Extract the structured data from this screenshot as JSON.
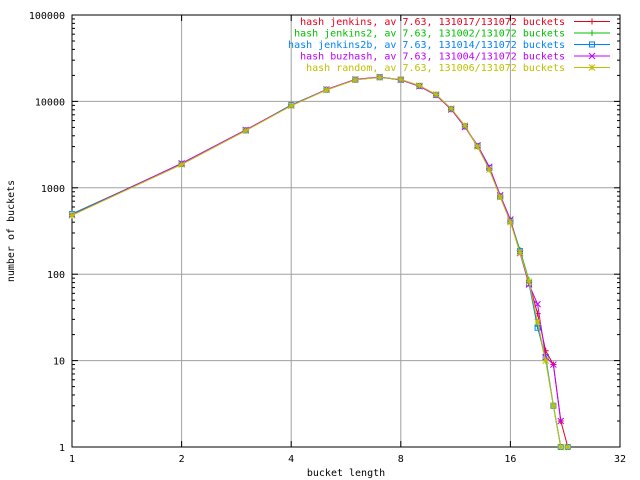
{
  "chart_data": {
    "type": "line",
    "title": "",
    "xlabel": "bucket length",
    "ylabel": "number of buckets",
    "xscale": "log2",
    "yscale": "log10",
    "xlim": [
      1,
      32
    ],
    "ylim": [
      1,
      100000
    ],
    "grid": true,
    "legend_position": "top-right",
    "x_ticks": [
      {
        "v": 1,
        "label": "1"
      },
      {
        "v": 2,
        "label": "2"
      },
      {
        "v": 4,
        "label": "4"
      },
      {
        "v": 8,
        "label": "8"
      },
      {
        "v": 16,
        "label": "16"
      },
      {
        "v": 32,
        "label": "32"
      }
    ],
    "y_ticks": [
      {
        "v": 1,
        "label": "1"
      },
      {
        "v": 10,
        "label": "10"
      },
      {
        "v": 100,
        "label": "100"
      },
      {
        "v": 1000,
        "label": "1000"
      },
      {
        "v": 10000,
        "label": "10000"
      },
      {
        "v": 100000,
        "label": "100000"
      }
    ],
    "series": [
      {
        "name": "hash jenkins, av 7.63, 131017/131072 buckets",
        "color": "#e8001c",
        "marker": "plus",
        "x": [
          1,
          2,
          3,
          4,
          5,
          6,
          7,
          8,
          9,
          10,
          11,
          12,
          13,
          14,
          15,
          16,
          17,
          18,
          19,
          20,
          21,
          22,
          23
        ],
        "y": [
          490,
          1900,
          4650,
          9000,
          13700,
          17900,
          19100,
          17800,
          15000,
          11800,
          8100,
          5100,
          3000,
          1650,
          800,
          420,
          180,
          80,
          35,
          13,
          9,
          2,
          1
        ]
      },
      {
        "name": "hash jenkins2, av 7.63, 131002/131072 buckets",
        "color": "#00c000",
        "marker": "plus",
        "x": [
          1,
          2,
          3,
          4,
          5,
          6,
          7,
          8,
          9,
          10,
          11,
          12,
          13,
          14,
          15,
          16,
          17,
          18,
          19,
          20,
          21,
          22,
          23
        ],
        "y": [
          500,
          1880,
          4600,
          9100,
          13600,
          17800,
          19000,
          17900,
          15200,
          12000,
          8200,
          5200,
          3000,
          1650,
          800,
          420,
          190,
          85,
          25,
          10,
          3,
          1,
          1
        ]
      },
      {
        "name": "hash jenkins2b, av 7.63, 131014/131072 buckets",
        "color": "#0080ff",
        "marker": "box",
        "x": [
          1,
          2,
          3,
          4,
          5,
          6,
          7,
          8,
          9,
          10,
          11,
          12,
          13,
          14,
          15,
          16,
          17,
          18,
          19,
          20,
          21,
          22,
          23
        ],
        "y": [
          495,
          1890,
          4620,
          9050,
          13650,
          17850,
          19050,
          17850,
          15100,
          11900,
          8150,
          5150,
          3050,
          1700,
          790,
          410,
          185,
          78,
          24,
          11,
          3,
          1,
          1
        ]
      },
      {
        "name": "hash buzhash, av 7.63, 131004/131072 buckets",
        "color": "#c000ff",
        "marker": "cross",
        "x": [
          1,
          2,
          3,
          4,
          5,
          6,
          7,
          8,
          9,
          10,
          11,
          12,
          13,
          14,
          15,
          16,
          17,
          18,
          19,
          20,
          21,
          22
        ],
        "y": [
          485,
          1920,
          4680,
          8950,
          13750,
          17950,
          19150,
          17750,
          14950,
          11850,
          8050,
          5050,
          3100,
          1750,
          820,
          430,
          175,
          76,
          45,
          11,
          9,
          2
        ]
      },
      {
        "name": "hash random, av 7.63, 131006/131072 buckets",
        "color": "#c0c000",
        "marker": "star",
        "x": [
          1,
          2,
          3,
          4,
          5,
          6,
          7,
          8,
          9,
          10,
          11,
          12,
          13,
          14,
          15,
          16,
          17,
          18,
          19,
          20,
          21,
          22,
          23
        ],
        "y": [
          480,
          1860,
          4580,
          8900,
          13550,
          17750,
          18950,
          17950,
          15250,
          12050,
          8250,
          5250,
          3000,
          1620,
          780,
          400,
          178,
          82,
          28,
          10,
          3,
          1,
          1
        ]
      }
    ]
  }
}
